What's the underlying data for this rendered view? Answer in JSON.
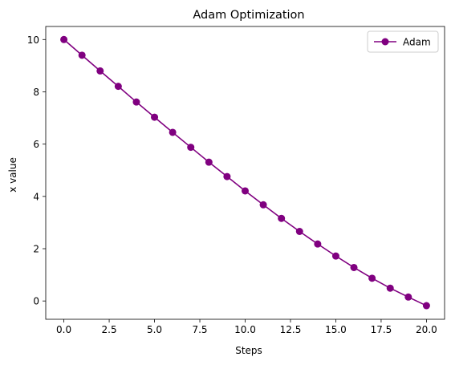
{
  "chart_data": {
    "type": "line",
    "title": "Adam Optimization",
    "xlabel": "Steps",
    "ylabel": "x value",
    "xlim": [
      -1,
      21
    ],
    "ylim": [
      -0.7,
      10.5
    ],
    "xticks": [
      0.0,
      2.5,
      5.0,
      7.5,
      10.0,
      12.5,
      15.0,
      17.5,
      20.0
    ],
    "xtick_labels": [
      "0.0",
      "2.5",
      "5.0",
      "7.5",
      "10.0",
      "12.5",
      "15.0",
      "17.5",
      "20.0"
    ],
    "yticks": [
      0,
      2,
      4,
      6,
      8,
      10
    ],
    "ytick_labels": [
      "0",
      "2",
      "4",
      "6",
      "8",
      "10"
    ],
    "grid": false,
    "legend_position": "top-right",
    "series": [
      {
        "name": "Adam",
        "color": "#800080",
        "marker": "circle",
        "x": [
          0,
          1,
          2,
          3,
          4,
          5,
          6,
          7,
          8,
          9,
          10,
          11,
          12,
          13,
          14,
          15,
          16,
          17,
          18,
          19,
          20
        ],
        "y": [
          10.0,
          9.4,
          8.8,
          8.21,
          7.61,
          7.03,
          6.45,
          5.88,
          5.31,
          4.76,
          4.21,
          3.68,
          3.16,
          2.66,
          2.18,
          1.72,
          1.28,
          0.87,
          0.49,
          0.15,
          -0.18
        ]
      }
    ]
  }
}
